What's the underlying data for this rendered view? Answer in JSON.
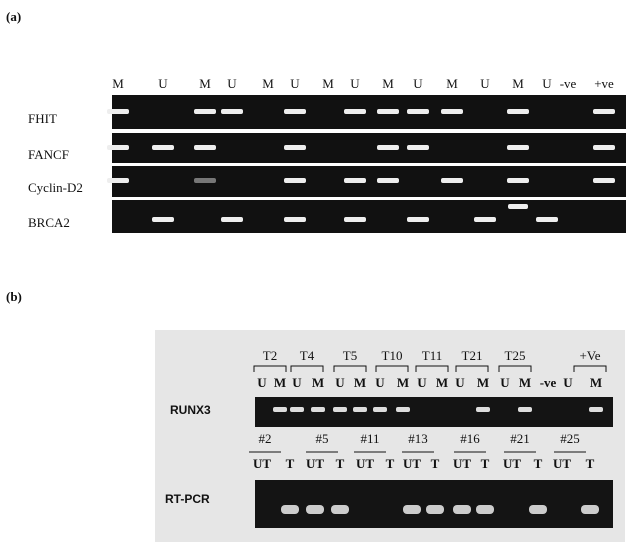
{
  "panel_a": {
    "label": "(a)",
    "lanes": [
      "M",
      "U",
      "M",
      "U",
      "M",
      "U",
      "M",
      "U",
      "M",
      "U",
      "M",
      "U",
      "M",
      "U",
      "-ve",
      "+ve"
    ],
    "rows": [
      "FHIT",
      "FANCF",
      "Cyclin-D2",
      "BRCA2"
    ]
  },
  "panel_b": {
    "label": "(b)",
    "groups": [
      "T2",
      "T4",
      "T5",
      "T10",
      "T11",
      "T21",
      "T25",
      "+Ve"
    ],
    "lanes": [
      "U",
      "M",
      "U",
      "M",
      "U",
      "M",
      "U",
      "M",
      "U",
      "M",
      "U",
      "M",
      "U",
      "M",
      "-ve",
      "U",
      "M"
    ],
    "row1": "RUNX3",
    "samples": [
      "#2",
      "#5",
      "#11",
      "#13",
      "#16",
      "#21",
      "#25"
    ],
    "lanes2": [
      "UT",
      "T",
      "UT",
      "T",
      "UT",
      "T",
      "UT",
      "T",
      "UT",
      "T",
      "UT",
      "T",
      "UT",
      "T"
    ],
    "row2": "RT-PCR"
  }
}
